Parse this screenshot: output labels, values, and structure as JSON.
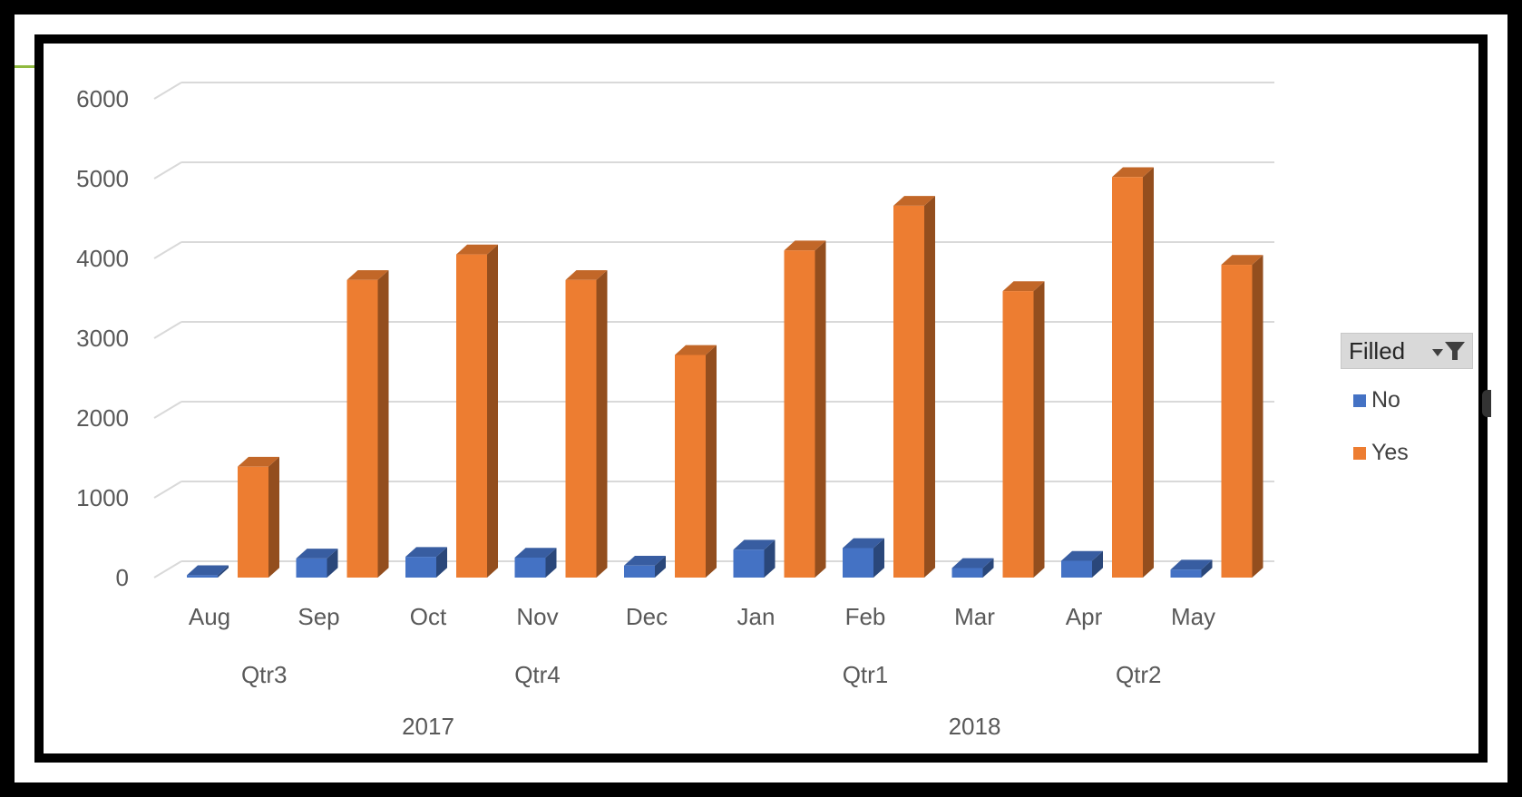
{
  "chart_data": {
    "type": "bar",
    "categories": [
      "Aug",
      "Sep",
      "Oct",
      "Nov",
      "Dec",
      "Jan",
      "Feb",
      "Mar",
      "Apr",
      "May"
    ],
    "quarters": [
      {
        "label": "Qtr3",
        "span": [
          0,
          1
        ]
      },
      {
        "label": "Qtr4",
        "span": [
          2,
          4
        ]
      },
      {
        "label": "Qtr1",
        "span": [
          5,
          7
        ]
      },
      {
        "label": "Qtr2",
        "span": [
          8,
          9
        ]
      }
    ],
    "years": [
      {
        "label": "2017",
        "span": [
          0,
          4
        ]
      },
      {
        "label": "2018",
        "span": [
          5,
          9
        ]
      }
    ],
    "series": [
      {
        "name": "No",
        "color": "#4472c4",
        "values": [
          30,
          240,
          260,
          250,
          150,
          350,
          370,
          120,
          210,
          100
        ]
      },
      {
        "name": "Yes",
        "color": "#ed7d31",
        "values": [
          1390,
          3730,
          4050,
          3730,
          2790,
          4100,
          4660,
          3590,
          5020,
          3920
        ]
      }
    ],
    "yticks": [
      "0",
      "1000",
      "2000",
      "3000",
      "4000",
      "5000",
      "6000"
    ],
    "ylim": [
      0,
      6000
    ],
    "grid": true,
    "legend_title": "Filled",
    "legend_position": "right"
  }
}
